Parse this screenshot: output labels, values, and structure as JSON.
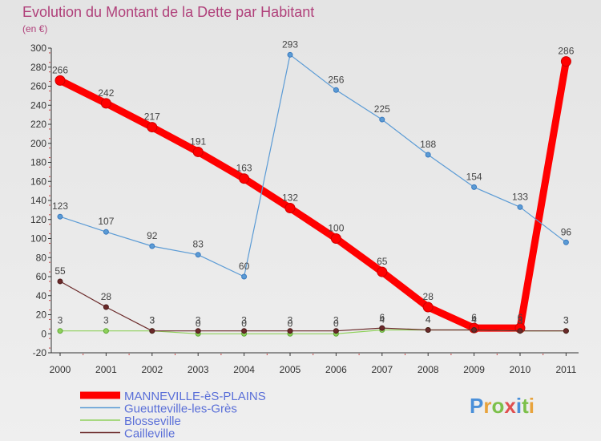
{
  "chart_data": {
    "type": "line",
    "title": "Evolution du Montant de la Dette par Habitant",
    "subtitle": "(en €)",
    "xlabel": "",
    "ylabel": "",
    "categories": [
      "2000",
      "2001",
      "2002",
      "2003",
      "2004",
      "2005",
      "2006",
      "2007",
      "2008",
      "2009",
      "2010",
      "2011"
    ],
    "ylim": [
      -20,
      300
    ],
    "yticks": [
      -20,
      0,
      20,
      40,
      60,
      80,
      100,
      120,
      140,
      160,
      180,
      200,
      220,
      240,
      260,
      280,
      300
    ],
    "grid": false,
    "legend_position": "bottom-left",
    "series": [
      {
        "name": "MANNEVILLE-èS-PLAINS",
        "color": "#ff0000",
        "values": [
          266,
          242,
          217,
          191,
          163,
          132,
          100,
          65,
          28,
          6,
          6,
          286
        ],
        "labels": [
          "266",
          "242",
          "217",
          "191",
          "163",
          "132",
          "100",
          "65",
          "28",
          "6",
          "6",
          "286"
        ]
      },
      {
        "name": "Gueutteville-les-Grès",
        "color": "#5b9bd5",
        "values": [
          123,
          107,
          92,
          83,
          60,
          293,
          256,
          225,
          188,
          154,
          133,
          96
        ],
        "labels": [
          "123",
          "107",
          "92",
          "83",
          "60",
          "293",
          "256",
          "225",
          "188",
          "154",
          "133",
          "96"
        ]
      },
      {
        "name": "Blosseville",
        "color": "#8fd15b",
        "values": [
          3,
          3,
          3,
          0,
          0,
          0,
          0,
          4,
          4,
          4,
          3,
          3
        ],
        "labels": [
          "3",
          "3",
          "3",
          "0",
          "0",
          "0",
          "0",
          "4",
          "4",
          "4",
          "3",
          "3"
        ]
      },
      {
        "name": "Cailleville",
        "color": "#6b2a2a",
        "values": [
          55,
          28,
          3,
          3,
          3,
          3,
          3,
          6,
          4,
          4,
          3,
          3
        ],
        "labels": [
          "55",
          "28",
          "3",
          "3",
          "3",
          "3",
          "3",
          "6",
          "4",
          "4",
          "3",
          "3"
        ]
      }
    ]
  },
  "brand": {
    "letters": [
      "P",
      "r",
      "o",
      "x",
      "i",
      "t",
      "i"
    ],
    "colors": [
      "#4a90d9",
      "#e8a33c",
      "#7cc04a",
      "#e05050",
      "#4a90d9",
      "#7cc04a",
      "#e8a33c"
    ]
  }
}
